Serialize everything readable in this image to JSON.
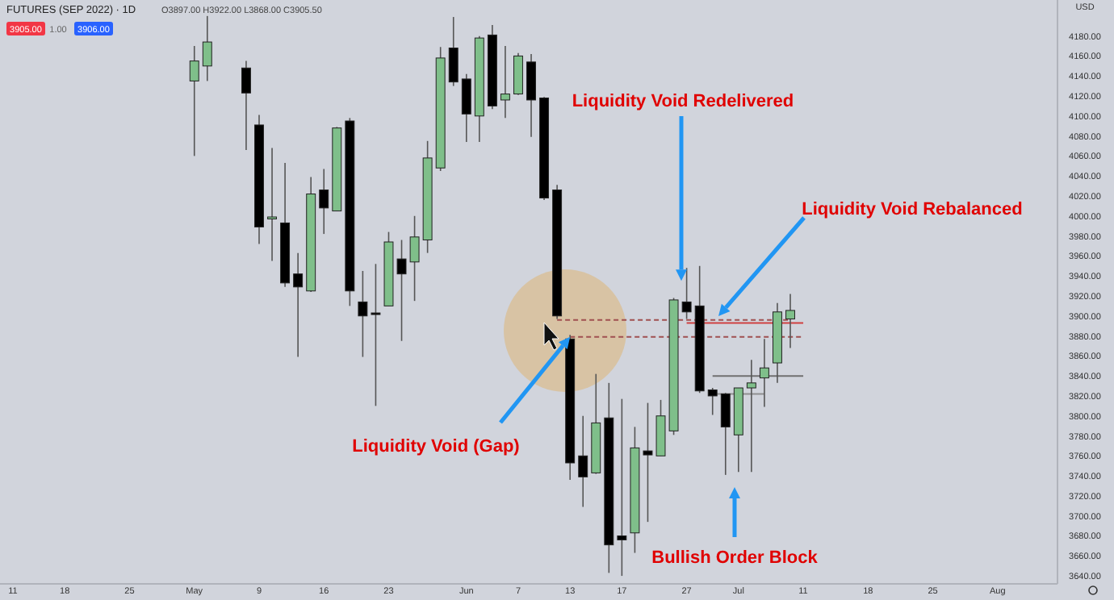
{
  "chart_data": {
    "type": "candlestick",
    "title": "FUTURES (SEP 2022) · 1D",
    "subtitle": "O3897.00 H3922.00 L3868.00 C3905.50",
    "ylabel": "USD",
    "categories": [
      "11",
      null,
      null,
      null,
      "18",
      null,
      null,
      null,
      null,
      "25",
      null,
      null,
      null,
      null,
      "May",
      null,
      null,
      null,
      null,
      "9",
      null,
      null,
      null,
      null,
      "16",
      null,
      null,
      null,
      null,
      "23",
      null,
      null,
      null,
      null,
      null,
      "Jun",
      null,
      null,
      null,
      "7",
      null,
      null,
      null,
      "13",
      null,
      null,
      null,
      "17",
      null,
      null,
      null,
      null,
      "27",
      null,
      null,
      null,
      "Jul",
      null,
      null,
      null,
      null,
      "11",
      null,
      null,
      null,
      null,
      "18",
      null,
      null,
      null,
      null,
      "25",
      null,
      null,
      null,
      null,
      "Aug",
      null,
      null,
      null
    ],
    "ohlc": [
      null,
      null,
      null,
      null,
      null,
      null,
      null,
      null,
      null,
      null,
      null,
      null,
      null,
      null,
      [
        4135,
        4170,
        4060,
        4155
      ],
      [
        4150,
        4200,
        4135,
        4174
      ],
      null,
      null,
      [
        4148,
        4155,
        4066,
        4123
      ],
      [
        4091,
        4101,
        3972,
        3989
      ],
      [
        3997,
        4068,
        3955,
        3999
      ],
      [
        3993,
        4053,
        3929,
        3933
      ],
      [
        3942,
        3963,
        3859,
        3929
      ],
      [
        3925,
        4039,
        3924,
        4022
      ],
      [
        4026,
        4047,
        3982,
        4008
      ],
      [
        4005,
        4089,
        4005,
        4088
      ],
      [
        4095,
        4098,
        3910,
        3925
      ],
      [
        3914,
        3945,
        3859,
        3900
      ],
      [
        3903,
        3952,
        3810,
        3902
      ],
      [
        3910,
        3984,
        3910,
        3974
      ],
      [
        3957,
        3976,
        3875,
        3942
      ],
      [
        3954,
        4000,
        3915,
        3979
      ],
      [
        3976,
        4075,
        3963,
        4058
      ],
      [
        4048,
        4169,
        4045,
        4158
      ],
      [
        4168,
        4199,
        4130,
        4134
      ],
      [
        4137,
        4142,
        4074,
        4102
      ],
      [
        4100,
        4180,
        4074,
        4178
      ],
      [
        4181,
        4191,
        4107,
        4110
      ],
      [
        4116,
        4170,
        4098,
        4122
      ],
      [
        4122,
        4163,
        4121,
        4160
      ],
      [
        4154,
        4162,
        4079,
        4116
      ],
      [
        4118,
        4119,
        4016,
        4018
      ],
      [
        4026,
        4031,
        3897,
        3900
      ],
      [
        3877,
        3881,
        3736,
        3753
      ],
      [
        3760,
        3800,
        3709,
        3739
      ],
      [
        3743,
        3842,
        3742,
        3793
      ],
      [
        3798,
        3833,
        3643,
        3671
      ],
      [
        3680,
        3817,
        3640,
        3676
      ],
      [
        3683,
        3789,
        3663,
        3768
      ],
      [
        3765,
        3813,
        3694,
        3761
      ],
      [
        3760,
        3816,
        3760,
        3800
      ],
      [
        3785,
        3918,
        3781,
        3916
      ],
      [
        3914,
        3948,
        3897,
        3904
      ],
      [
        3910,
        3950,
        3823,
        3825
      ],
      [
        3826,
        3828,
        3801,
        3820
      ],
      [
        3822,
        3823,
        3741,
        3789
      ],
      [
        3781,
        3828,
        3744,
        3828
      ],
      [
        3828,
        3856,
        3744,
        3833
      ],
      [
        3838,
        3877,
        3809,
        3848
      ],
      [
        3853,
        3913,
        3833,
        3904
      ],
      [
        3897,
        3922,
        3868,
        3905.5
      ],
      null,
      null,
      null,
      null,
      null,
      null,
      null,
      null,
      null,
      null,
      null,
      null,
      null,
      null,
      null,
      null,
      null,
      null,
      null
    ],
    "colors": [
      null,
      null,
      null,
      null,
      null,
      null,
      null,
      null,
      null,
      null,
      null,
      null,
      null,
      null,
      "#7fbf8a",
      "#7fbf8a",
      null,
      null,
      "#000000",
      "#000000",
      "#7fbf8a",
      "#000000",
      "#000000",
      "#7fbf8a",
      "#000000",
      "#7fbf8a",
      "#000000",
      "#000000",
      "#000000",
      "#7fbf8a",
      "#000000",
      "#7fbf8a",
      "#7fbf8a",
      "#7fbf8a",
      "#000000",
      "#000000",
      "#7fbf8a",
      "#000000",
      "#7fbf8a",
      "#7fbf8a",
      "#000000",
      "#000000",
      "#000000",
      "#000000",
      "#000000",
      "#7fbf8a",
      "#000000",
      "#000000",
      "#7fbf8a",
      "#000000",
      "#7fbf8a",
      "#7fbf8a",
      "#000000",
      "#000000",
      "#000000",
      "#000000",
      "#7fbf8a",
      "#7fbf8a",
      "#7fbf8a",
      "#7fbf8a",
      "#7fbf8a",
      null,
      null,
      null,
      null,
      null,
      null,
      null,
      null,
      null,
      null,
      null,
      null,
      null,
      null,
      null,
      null,
      null,
      null,
      null
    ],
    "series": [
      {
        "type": "line",
        "color": "#d04040",
        "line_style": "solid",
        "values": [
          null,
          null,
          null,
          null,
          null,
          null,
          null,
          null,
          null,
          null,
          null,
          null,
          null,
          null,
          null,
          null,
          null,
          null,
          null,
          null,
          null,
          null,
          null,
          null,
          null,
          null,
          null,
          null,
          null,
          null,
          null,
          null,
          null,
          null,
          null,
          null,
          null,
          null,
          null,
          null,
          null,
          null,
          null,
          null,
          null,
          null,
          null,
          null,
          null,
          null,
          null,
          null,
          3893,
          3893,
          3893,
          3893,
          3893,
          3893,
          3893,
          3893,
          3893,
          3893,
          null,
          null,
          null,
          null,
          null,
          null,
          null,
          null,
          null,
          null,
          null,
          null,
          null,
          null,
          null,
          null,
          null,
          null
        ]
      },
      {
        "type": "line",
        "color": "#a05050",
        "line_style": "dashed",
        "values": [
          null,
          null,
          null,
          null,
          null,
          null,
          null,
          null,
          null,
          null,
          null,
          null,
          null,
          null,
          null,
          null,
          null,
          null,
          null,
          null,
          null,
          null,
          null,
          null,
          null,
          null,
          null,
          null,
          null,
          null,
          null,
          null,
          null,
          null,
          null,
          null,
          null,
          null,
          null,
          null,
          null,
          null,
          3896,
          3896,
          3896,
          3896,
          3896,
          3896,
          3896,
          3896,
          3896,
          3896,
          3896,
          3896,
          3896,
          3896,
          3896,
          3896,
          3896,
          3896,
          3896,
          null,
          null,
          null,
          null,
          null,
          null,
          null,
          null,
          null,
          null,
          null,
          null,
          null,
          null,
          null,
          null,
          null,
          null,
          null
        ]
      },
      {
        "type": "line",
        "color": "#a05050",
        "line_style": "dashed",
        "values": [
          null,
          null,
          null,
          null,
          null,
          null,
          null,
          null,
          null,
          null,
          null,
          null,
          null,
          null,
          null,
          null,
          null,
          null,
          null,
          null,
          null,
          null,
          null,
          null,
          null,
          null,
          null,
          null,
          null,
          null,
          null,
          null,
          null,
          null,
          null,
          null,
          null,
          null,
          null,
          null,
          null,
          null,
          null,
          3879,
          3879,
          3879,
          3879,
          3879,
          3879,
          3879,
          3879,
          3879,
          3879,
          3879,
          3879,
          3879,
          3879,
          3879,
          3879,
          3879,
          3879,
          3879,
          null,
          null,
          null,
          null,
          null,
          null,
          null,
          null,
          null,
          null,
          null,
          null,
          null,
          null,
          null,
          null,
          null,
          null
        ]
      },
      {
        "type": "line",
        "color": "#707070",
        "line_style": "solid",
        "values": [
          null,
          null,
          null,
          null,
          null,
          null,
          null,
          null,
          null,
          null,
          null,
          null,
          null,
          null,
          null,
          null,
          null,
          null,
          null,
          null,
          null,
          null,
          null,
          null,
          null,
          null,
          null,
          null,
          null,
          null,
          null,
          null,
          null,
          null,
          null,
          null,
          null,
          null,
          null,
          null,
          null,
          null,
          null,
          null,
          null,
          null,
          null,
          null,
          null,
          null,
          null,
          null,
          null,
          null,
          3840,
          3840,
          3840,
          3840,
          3840,
          3840,
          3840,
          3840,
          null,
          null,
          null,
          null,
          null,
          null,
          null,
          null,
          null,
          null,
          null,
          null,
          null,
          null,
          null,
          null,
          null,
          null
        ]
      },
      {
        "type": "line",
        "color": "#909090",
        "line_style": "solid",
        "values": [
          null,
          null,
          null,
          null,
          null,
          null,
          null,
          null,
          null,
          null,
          null,
          null,
          null,
          null,
          null,
          null,
          null,
          null,
          null,
          null,
          null,
          null,
          null,
          null,
          null,
          null,
          null,
          null,
          null,
          null,
          null,
          null,
          null,
          null,
          null,
          null,
          null,
          null,
          null,
          null,
          null,
          null,
          null,
          null,
          null,
          null,
          null,
          null,
          null,
          null,
          null,
          null,
          null,
          null,
          3822,
          3822,
          3822,
          3822,
          3822,
          null,
          null,
          null,
          null,
          null,
          null,
          null,
          null,
          null,
          null,
          null,
          null,
          null,
          null,
          null,
          null,
          null,
          null,
          null,
          null,
          null
        ]
      }
    ],
    "ylim": [
      3632,
      4216
    ],
    "yticks": [
      {
        "value": 3640,
        "label": "3640.00"
      },
      {
        "value": 3660,
        "label": "3660.00"
      },
      {
        "value": 3680,
        "label": "3680.00"
      },
      {
        "value": 3700,
        "label": "3700.00"
      },
      {
        "value": 3720,
        "label": "3720.00"
      },
      {
        "value": 3740,
        "label": "3740.00"
      },
      {
        "value": 3760,
        "label": "3760.00"
      },
      {
        "value": 3780,
        "label": "3780.00"
      },
      {
        "value": 3800,
        "label": "3800.00"
      },
      {
        "value": 3820,
        "label": "3820.00"
      },
      {
        "value": 3840,
        "label": "3840.00"
      },
      {
        "value": 3860,
        "label": "3860.00"
      },
      {
        "value": 3880,
        "label": "3880.00"
      },
      {
        "value": 3900,
        "label": "3900.00"
      },
      {
        "value": 3920,
        "label": "3920.00"
      },
      {
        "value": 3940,
        "label": "3940.00"
      },
      {
        "value": 3960,
        "label": "3960.00"
      },
      {
        "value": 3980,
        "label": "3980.00"
      },
      {
        "value": 4000,
        "label": "4000.00"
      },
      {
        "value": 4020,
        "label": "4020.00"
      },
      {
        "value": 4040,
        "label": "4040.00"
      },
      {
        "value": 4060,
        "label": "4060.00"
      },
      {
        "value": 4080,
        "label": "4080.00"
      },
      {
        "value": 4100,
        "label": "4100.00"
      },
      {
        "value": 4120,
        "label": "4120.00"
      },
      {
        "value": 4140,
        "label": "4140.00"
      },
      {
        "value": 4160,
        "label": "4160.00"
      },
      {
        "value": 4180,
        "label": "4180.00"
      }
    ],
    "annotations": [
      "3905.00",
      "1.00",
      "3906.00",
      {
        "text": "Liquidity Void (Gap)",
        "x": "13",
        "y": 3879
      },
      {
        "text": "Liquidity Void Redelivered",
        "y": 3935
      },
      "Liquidity Void Rebalanced",
      "Bullish Order Block"
    ]
  }
}
